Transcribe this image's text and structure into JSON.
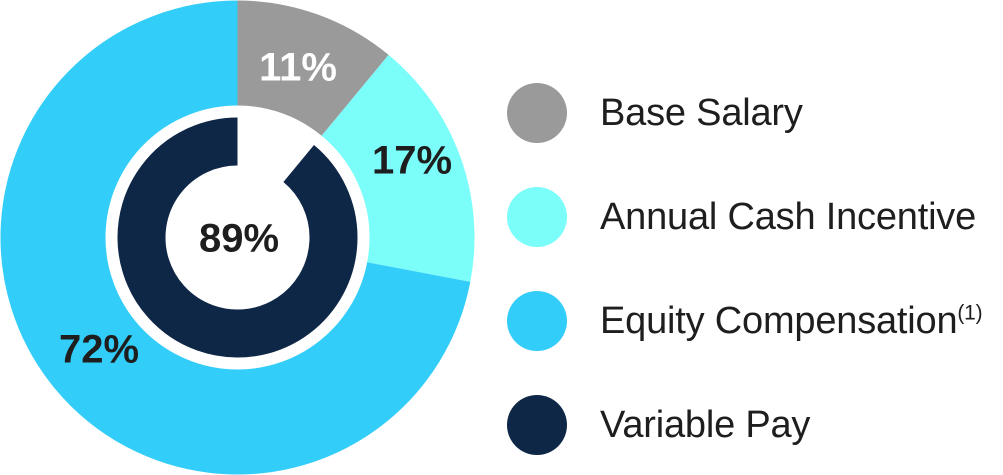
{
  "chart_data": {
    "type": "pie",
    "variant": "double-ring-donut",
    "title": "",
    "categories": [
      "Base Salary",
      "Annual Cash Incentive",
      "Equity Compensation(1)",
      "Variable Pay"
    ],
    "outer_ring": {
      "start_angle_deg": 0,
      "direction": "clockwise",
      "segments": [
        {
          "label": "Base Salary",
          "value": 11,
          "display": "11%",
          "color": "#9a9a9a",
          "label_color": "#ffffff"
        },
        {
          "label": "Annual Cash Incentive",
          "value": 17,
          "display": "17%",
          "color": "#7bfdf9",
          "label_color": "#1e1e1e"
        },
        {
          "label": "Equity Compensation(1)",
          "value": 72,
          "display": "72%",
          "color": "#33cdfa",
          "label_color": "#1e1e1e"
        }
      ]
    },
    "inner_ring": {
      "start_angle_deg": 0,
      "direction": "clockwise",
      "note": "dark arc covers 89%; white gap aligned with the 11% Base Salary slice",
      "segments": [
        {
          "label": "gap",
          "value": 11,
          "color": "transparent"
        },
        {
          "label": "Variable Pay",
          "value": 89,
          "display": "89%",
          "color": "#0e2747"
        }
      ]
    },
    "center_label": {
      "text": "89%",
      "color": "#1e1e1e"
    },
    "legend": {
      "position": "right",
      "items": [
        {
          "label": "Base Salary",
          "superscript": "",
          "color": "#9a9a9a"
        },
        {
          "label": "Annual Cash Incentive",
          "superscript": "",
          "color": "#7bfdf9"
        },
        {
          "label": "Equity Compensation",
          "superscript": "(1)",
          "color": "#33cdfa"
        },
        {
          "label": "Variable Pay",
          "superscript": "",
          "color": "#0e2747"
        }
      ]
    },
    "geometry_hints": {
      "outer_radius_px": 237,
      "outer_inner_radius_px": 132,
      "inner_arc_outer_radius_px": 120,
      "inner_arc_inner_radius_px": 72
    }
  }
}
